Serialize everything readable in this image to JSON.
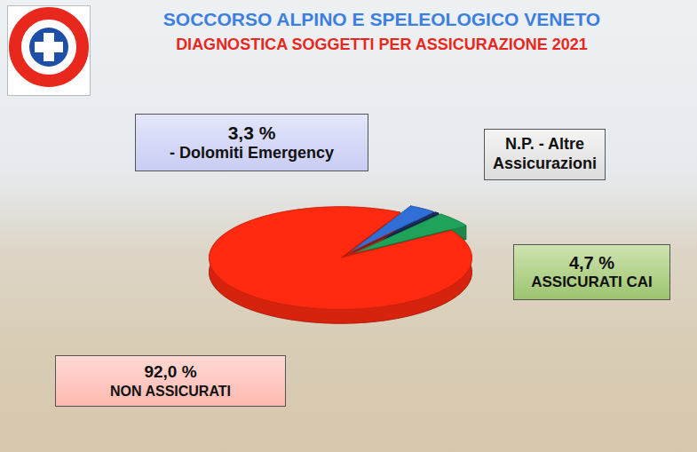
{
  "chart_data": {
    "type": "pie",
    "title": "SOCCORSO ALPINO E SPELEOLOGICO VENETO",
    "subtitle": "DIAGNOSTICA SOGGETTI PER ASSICURAZIONE 2021",
    "categories": [
      "- Dolomiti Emergency",
      "N.P. - Altre Assicurazioni",
      "ASSICURATI CAI",
      "NON ASSICURATI"
    ],
    "values": [
      3.3,
      0.5,
      4.7,
      92.0
    ],
    "value_labels": [
      "3,3 %",
      null,
      "4,7 %",
      "92,0 %"
    ],
    "colors": [
      "#2f6fd6",
      "#1c2f5e",
      "#1fa35a",
      "#ff2a10"
    ],
    "data_labels": true
  }
}
